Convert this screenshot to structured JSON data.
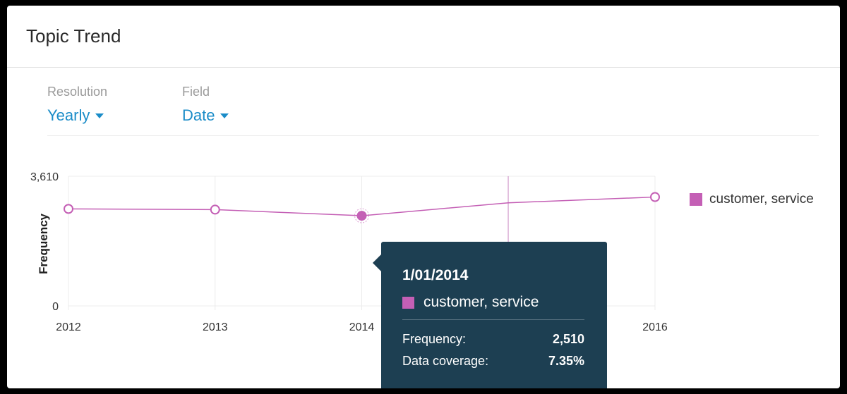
{
  "card": {
    "title": "Topic Trend"
  },
  "controls": {
    "resolution": {
      "label": "Resolution",
      "value": "Yearly"
    },
    "field": {
      "label": "Field",
      "value": "Date"
    }
  },
  "chart_data": {
    "type": "line",
    "x": [
      "2012",
      "2013",
      "2014",
      "2015",
      "2016"
    ],
    "x_tick_labels": [
      "2012",
      "2013",
      "2014",
      "",
      "2016"
    ],
    "ylabel": "Frequency",
    "y_ticks": [
      "3,610",
      "0"
    ],
    "ylim": [
      0,
      3610
    ],
    "grid": true,
    "legend": "right",
    "series": [
      {
        "name": "customer, service",
        "color": "#c45fb5",
        "values": [
          2700,
          2680,
          2510,
          2870,
          3030
        ]
      }
    ],
    "highlighted_index": 2
  },
  "legend": {
    "label": "customer, service"
  },
  "tooltip": {
    "date": "1/01/2014",
    "series": "customer, service",
    "frequency_label": "Frequency:",
    "frequency_value": "2,510",
    "coverage_label": "Data coverage:",
    "coverage_value": "7.35%"
  },
  "colors": {
    "accent": "#1a8cc8",
    "series": "#c45fb5",
    "tooltip_bg": "#1d3f52"
  }
}
